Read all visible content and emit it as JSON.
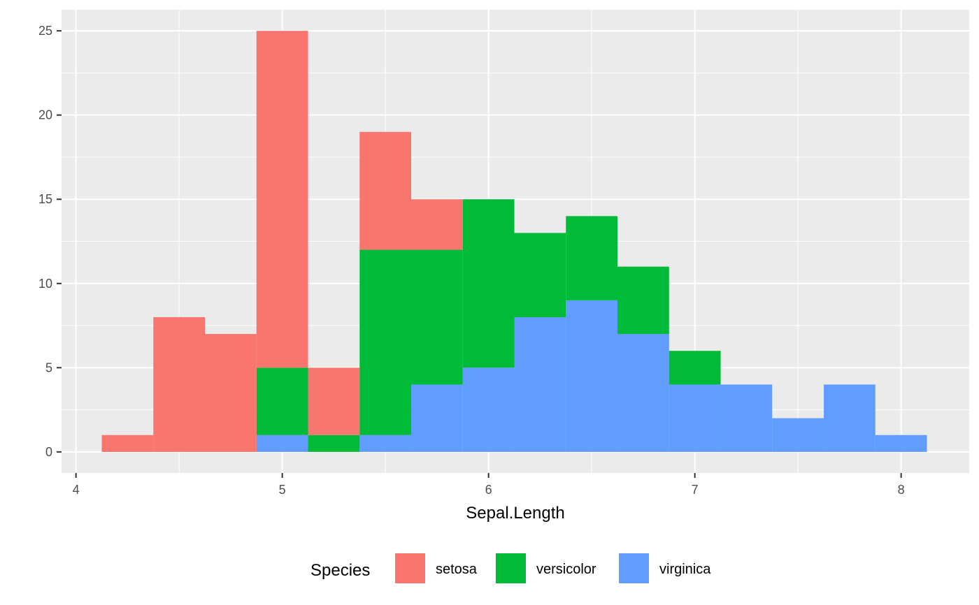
{
  "chart_data": {
    "type": "bar",
    "stacked": true,
    "title": "",
    "xlabel": "Sepal.Length",
    "ylabel": "",
    "bin_width": 0.25,
    "bin_centers": [
      4.25,
      4.5,
      4.75,
      5.0,
      5.25,
      5.5,
      5.75,
      6.0,
      6.25,
      6.5,
      6.75,
      7.0,
      7.25,
      7.5,
      7.75,
      8.0
    ],
    "xlim": [
      3.93,
      8.33
    ],
    "ylim": [
      -1.25,
      26.25
    ],
    "x_ticks": [
      4,
      5,
      6,
      7,
      8
    ],
    "x_tick_labels": [
      "4",
      "5",
      "6",
      "7",
      "8"
    ],
    "y_ticks": [
      0,
      5,
      10,
      15,
      20,
      25
    ],
    "y_tick_labels": [
      "0",
      "5",
      "10",
      "15",
      "20",
      "25"
    ],
    "grid": true,
    "panel_background": "#ebebeb",
    "grid_color": "#ffffff",
    "series": [
      {
        "name": "virginica",
        "color": "#619cff",
        "values": [
          0,
          0,
          0,
          1,
          0,
          1,
          4,
          5,
          8,
          9,
          7,
          4,
          4,
          2,
          4,
          1
        ]
      },
      {
        "name": "versicolor",
        "color": "#00ba38",
        "values": [
          0,
          0,
          0,
          4,
          1,
          11,
          8,
          10,
          5,
          5,
          4,
          2,
          0,
          0,
          0,
          0
        ]
      },
      {
        "name": "setosa",
        "color": "#f8766d",
        "values": [
          1,
          8,
          7,
          20,
          4,
          7,
          3,
          0,
          0,
          0,
          0,
          0,
          0,
          0,
          0,
          0
        ]
      }
    ],
    "legend": {
      "title": "Species",
      "position": "bottom",
      "entries": [
        {
          "label": "setosa",
          "color": "#f8766d"
        },
        {
          "label": "versicolor",
          "color": "#00ba38"
        },
        {
          "label": "virginica",
          "color": "#619cff"
        }
      ]
    }
  }
}
